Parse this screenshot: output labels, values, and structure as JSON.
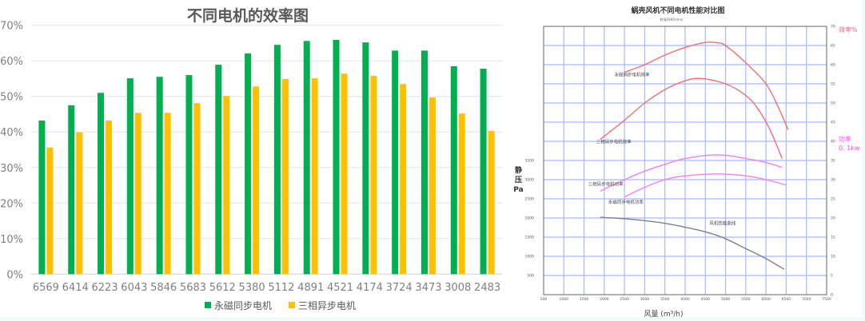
{
  "chart_data": [
    {
      "type": "bar",
      "title": "不同电机的效率图",
      "xlabel": "",
      "ylabel": "",
      "ylim": [
        0,
        70
      ],
      "yticks": [
        "0%",
        "10%",
        "20%",
        "30%",
        "40%",
        "50%",
        "60%",
        "70%"
      ],
      "grid": true,
      "legend_position": "bottom",
      "categories": [
        "6569",
        "6414",
        "6223",
        "6043",
        "5846",
        "5683",
        "5612",
        "5380",
        "5112",
        "4891",
        "4521",
        "4174",
        "3724",
        "3473",
        "3008",
        "2483"
      ],
      "series": [
        {
          "name": "永磁同步电机",
          "color": "#00b050",
          "values": [
            43.2,
            47.5,
            51.0,
            55.1,
            55.5,
            56.0,
            58.9,
            62.1,
            64.5,
            65.6,
            65.9,
            65.2,
            62.9,
            62.9,
            58.5,
            57.8
          ]
        },
        {
          "name": "三相异步电机",
          "color": "#ffc000",
          "values": [
            35.6,
            39.9,
            43.2,
            45.4,
            45.4,
            48.1,
            50.1,
            52.8,
            54.9,
            55.1,
            56.4,
            55.8,
            53.5,
            49.7,
            45.2,
            40.3
          ]
        }
      ]
    },
    {
      "type": "line",
      "title": "蜗壳风机不同电机性能对比图",
      "subtitle": "转速2900r/min",
      "xlabel": "风量 (m³/h)",
      "ylabel_left": "静压 Pa",
      "ylabel_right_efficiency": "效率%",
      "ylabel_right_power": [
        "功率",
        "0. 1kw"
      ],
      "xlim": [
        500,
        7500
      ],
      "xticks": [
        "500",
        "1000",
        "1500",
        "2000",
        "2500",
        "3000",
        "3500",
        "4000",
        "4500",
        "5000",
        "5500",
        "6000",
        "6500",
        "7000",
        "7500"
      ],
      "yticks_left": [
        "500",
        "1000",
        "1500",
        "2000",
        "2500",
        "3000",
        "3500"
      ],
      "yticks_right": [
        "0",
        "5",
        "10",
        "15",
        "20",
        "25",
        "30",
        "35",
        "40",
        "45",
        "50",
        "55",
        "60",
        "65",
        "70"
      ],
      "ylim_right": [
        0,
        70
      ],
      "ylim_left": [
        0,
        7000
      ],
      "grid": true,
      "series": [
        {
          "name": "永磁同步电机效率",
          "color": "#f07070",
          "axis": "right",
          "x": [
            2500,
            3000,
            3500,
            4000,
            4500,
            4800,
            5000,
            5500,
            6000,
            6300,
            6550
          ],
          "y": [
            58,
            60,
            62.5,
            64.5,
            65.8,
            65.7,
            65,
            60.5,
            55,
            49,
            43
          ]
        },
        {
          "name": "三相异步电机效率",
          "color": "#f07070",
          "axis": "right",
          "x": [
            1900,
            2500,
            3000,
            3500,
            4000,
            4400,
            5000,
            5500,
            5800,
            6100,
            6400
          ],
          "y": [
            40.5,
            45.5,
            50,
            53.5,
            55.8,
            56.4,
            55,
            52,
            48.5,
            43,
            35.5
          ]
        },
        {
          "name": "三相异步电机功率",
          "color": "#f080f0",
          "axis": "right",
          "x": [
            1900,
            2500,
            3000,
            3500,
            4000,
            4800,
            5500,
            6000,
            6400
          ],
          "y": [
            27,
            30,
            32.2,
            34,
            35.5,
            36.5,
            35.5,
            34.5,
            33.2
          ]
        },
        {
          "name": "永磁同步电机功率",
          "color": "#f080f0",
          "axis": "right",
          "x": [
            2500,
            3000,
            3500,
            4000,
            4800,
            5500,
            6000,
            6500
          ],
          "y": [
            25.5,
            28,
            30,
            31,
            31.5,
            31,
            30,
            28.6
          ]
        },
        {
          "name": "风机性能曲线",
          "color": "#808080",
          "axis": "left",
          "x": [
            1900,
            2500,
            3000,
            3500,
            4000,
            4500,
            5000,
            5500,
            6000,
            6450
          ],
          "y": [
            2020,
            1980,
            1930,
            1860,
            1760,
            1640,
            1460,
            1200,
            940,
            660
          ]
        }
      ]
    }
  ]
}
